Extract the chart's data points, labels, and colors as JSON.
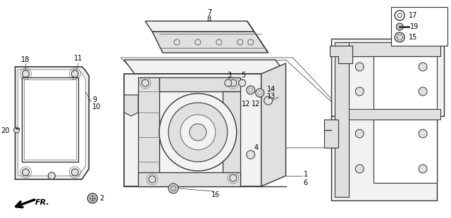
{
  "bg_color": "#ffffff",
  "line_color": "#333333",
  "light_line": "#666666",
  "fill_light": "#f2f2f2",
  "fill_mid": "#e0e0e0",
  "fill_dark": "#c8c8c8"
}
